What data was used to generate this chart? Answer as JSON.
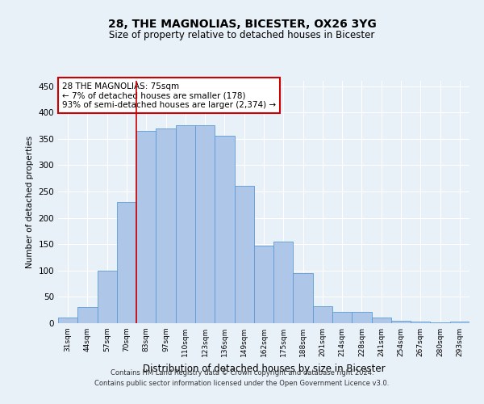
{
  "title": "28, THE MAGNOLIAS, BICESTER, OX26 3YG",
  "subtitle": "Size of property relative to detached houses in Bicester",
  "xlabel": "Distribution of detached houses by size in Bicester",
  "ylabel": "Number of detached properties",
  "footnote1": "Contains HM Land Registry data © Crown copyright and database right 2024.",
  "footnote2": "Contains public sector information licensed under the Open Government Licence v3.0.",
  "categories": [
    "31sqm",
    "44sqm",
    "57sqm",
    "70sqm",
    "83sqm",
    "97sqm",
    "110sqm",
    "123sqm",
    "136sqm",
    "149sqm",
    "162sqm",
    "175sqm",
    "188sqm",
    "201sqm",
    "214sqm",
    "228sqm",
    "241sqm",
    "254sqm",
    "267sqm",
    "280sqm",
    "293sqm"
  ],
  "values": [
    10,
    30,
    100,
    230,
    365,
    370,
    375,
    375,
    355,
    260,
    147,
    155,
    95,
    32,
    22,
    22,
    11,
    5,
    3,
    1,
    3
  ],
  "bar_color": "#aec6e8",
  "bar_edge_color": "#5b9bd5",
  "background_color": "#e8f0f8",
  "grid_color": "#ffffff",
  "vline_x": 3.5,
  "vline_color": "#cc0000",
  "annotation_text": "28 THE MAGNOLIAS: 75sqm\n← 7% of detached houses are smaller (178)\n93% of semi-detached houses are larger (2,374) →",
  "annotation_box_color": "#ffffff",
  "annotation_box_edge_color": "#cc0000",
  "ylim": [
    0,
    460
  ],
  "yticks": [
    0,
    50,
    100,
    150,
    200,
    250,
    300,
    350,
    400,
    450
  ]
}
